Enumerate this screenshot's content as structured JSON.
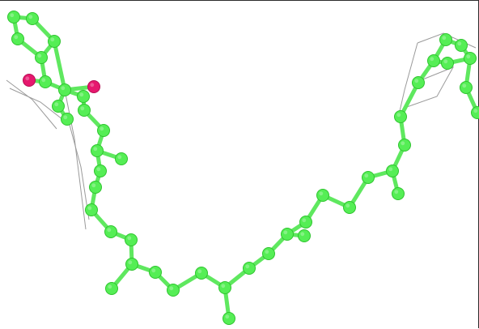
{
  "scene": {
    "background": "#ffffff",
    "frame_color": "#2b2b2b",
    "atom_colors": {
      "carbon": "#55ee55",
      "carbon_shade": "#2fc42f",
      "oxygen": "#e6186e",
      "oxygen_shade": "#b80e55"
    },
    "bond_color": "#5fe85f",
    "outline_color": "#9a9a9a"
  }
}
